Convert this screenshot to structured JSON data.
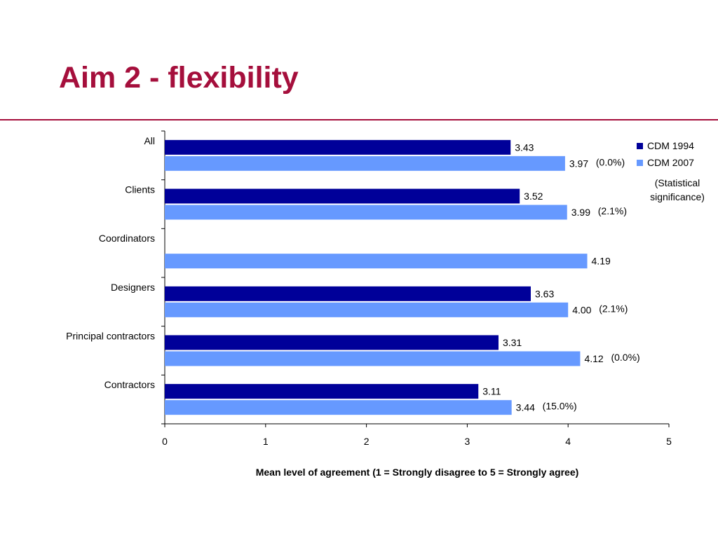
{
  "slide": {
    "title": "Aim 2 - flexibility"
  },
  "chart_data": {
    "type": "bar",
    "orientation": "horizontal",
    "categories": [
      "All",
      "Clients",
      "Coordinators",
      "Designers",
      "Principal contractors",
      "Contractors"
    ],
    "series": [
      {
        "name": "CDM 1994",
        "color": "#000099",
        "values": [
          3.43,
          3.52,
          null,
          3.63,
          3.31,
          3.11
        ]
      },
      {
        "name": "CDM 2007",
        "color": "#6699ff",
        "values": [
          3.97,
          3.99,
          4.19,
          4.0,
          4.12,
          3.44
        ]
      }
    ],
    "value_labels": {
      "CDM 1994": [
        "3.43",
        "3.52",
        "",
        "3.63",
        "3.31",
        "3.11"
      ],
      "CDM 2007": [
        "3.97",
        "3.99",
        "4.19",
        "4.00",
        "4.12",
        "3.44"
      ]
    },
    "significance": [
      "(0.0%)",
      "(2.1%)",
      "",
      "(2.1%)",
      "(0.0%)",
      "(15.0%)"
    ],
    "significance_note": "(Statistical significance)",
    "xlabel": "Mean level of agreement (1 = Strongly disagree to 5 = Strongly agree)",
    "ylabel": "",
    "xlim": [
      0,
      5
    ],
    "xticks": [
      "0",
      "1",
      "2",
      "3",
      "4",
      "5"
    ],
    "grid": false,
    "legend_position": "top-right"
  }
}
